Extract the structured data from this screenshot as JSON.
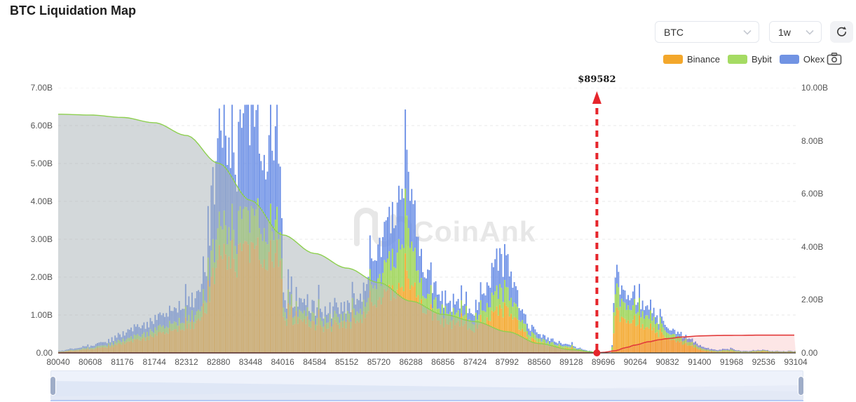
{
  "page": {
    "title": "BTC Liquidation Map"
  },
  "toolbar": {
    "symbol_select": {
      "value": "BTC"
    },
    "interval_select": {
      "value": "1w"
    },
    "icons": {
      "refresh": "circular-arrow",
      "camera": "camera-outline",
      "chevron": "chevron-down"
    }
  },
  "legend": [
    {
      "label": "Binance",
      "color": "#F3A72B"
    },
    {
      "label": "Bybit",
      "color": "#A5DB63"
    },
    {
      "label": "Okex",
      "color": "#7193E3"
    }
  ],
  "watermark": {
    "text": "CoinAnk",
    "color": "#e6e6e6"
  },
  "chart_data": {
    "type": "bar",
    "title": "BTC Liquidation Map",
    "current_price": 89582,
    "current_price_label": "$89582",
    "x_axis": {
      "min": 80040,
      "max": 93104,
      "tick_step": 568,
      "tick_labels": [
        "80040",
        "80608",
        "81176",
        "81744",
        "82312",
        "82880",
        "83448",
        "84016",
        "84584",
        "85152",
        "85720",
        "86288",
        "86856",
        "87424",
        "87992",
        "88560",
        "89128",
        "89696",
        "90264",
        "90832",
        "91400",
        "91968",
        "92536",
        "93104"
      ]
    },
    "y_axis_left": {
      "min": 0,
      "max": 7000000000,
      "tick_labels": [
        "0.00",
        "1.00B",
        "2.00B",
        "3.00B",
        "4.00B",
        "5.00B",
        "6.00B",
        "7.00B"
      ]
    },
    "y_axis_right": {
      "min": 0,
      "max": 10000000000,
      "tick_labels": [
        "0.00",
        "2.00B",
        "4.00B",
        "6.00B",
        "8.00B",
        "10.00B"
      ]
    },
    "grid": {
      "horizontal_dashed": true,
      "color": "#e9e9e9"
    },
    "bar_series_note": "stacked liquidation bars in $B (left axis); anchors = [price, total_B, binance_frac, bybit_frac], Okex = remainder; rendered with seeded jitter to match spiky texture",
    "noise_seed": 20240311,
    "bars": {
      "price_step": 28.4,
      "anchors": [
        [
          80040,
          0.05,
          0.55,
          0.15
        ],
        [
          80320,
          0.1,
          0.55,
          0.15
        ],
        [
          80608,
          0.17,
          0.52,
          0.16
        ],
        [
          80900,
          0.3,
          0.52,
          0.16
        ],
        [
          81176,
          0.48,
          0.5,
          0.16
        ],
        [
          81460,
          0.68,
          0.5,
          0.16
        ],
        [
          81744,
          0.85,
          0.52,
          0.16
        ],
        [
          82030,
          1.0,
          0.52,
          0.16
        ],
        [
          82312,
          1.25,
          0.52,
          0.16
        ],
        [
          82520,
          1.5,
          0.54,
          0.15
        ],
        [
          82660,
          2.3,
          0.5,
          0.15
        ],
        [
          82790,
          4.3,
          0.46,
          0.15
        ],
        [
          82880,
          5.6,
          0.44,
          0.14
        ],
        [
          83020,
          5.9,
          0.45,
          0.14
        ],
        [
          83160,
          4.9,
          0.47,
          0.15
        ],
        [
          83310,
          5.8,
          0.45,
          0.14
        ],
        [
          83448,
          6.3,
          0.44,
          0.14
        ],
        [
          83590,
          5.6,
          0.46,
          0.15
        ],
        [
          83730,
          5.3,
          0.47,
          0.15
        ],
        [
          83870,
          6.0,
          0.45,
          0.14
        ],
        [
          83955,
          5.8,
          0.45,
          0.14
        ],
        [
          83990,
          3.2,
          0.55,
          0.15
        ],
        [
          84030,
          1.4,
          0.6,
          0.16
        ],
        [
          84300,
          1.25,
          0.62,
          0.16
        ],
        [
          84584,
          1.15,
          0.62,
          0.16
        ],
        [
          84860,
          1.05,
          0.62,
          0.16
        ],
        [
          85152,
          1.25,
          0.62,
          0.16
        ],
        [
          85430,
          1.6,
          0.58,
          0.17
        ],
        [
          85720,
          2.55,
          0.5,
          0.2
        ],
        [
          85940,
          3.4,
          0.45,
          0.24
        ],
        [
          86080,
          4.3,
          0.42,
          0.26
        ],
        [
          86180,
          4.85,
          0.4,
          0.27
        ],
        [
          86288,
          4.3,
          0.42,
          0.26
        ],
        [
          86420,
          2.3,
          0.5,
          0.22
        ],
        [
          86570,
          2.0,
          0.52,
          0.2
        ],
        [
          86710,
          1.6,
          0.55,
          0.2
        ],
        [
          86856,
          1.4,
          0.56,
          0.2
        ],
        [
          87000,
          1.1,
          0.58,
          0.2
        ],
        [
          87140,
          1.25,
          0.58,
          0.2
        ],
        [
          87280,
          1.2,
          0.58,
          0.2
        ],
        [
          87424,
          1.15,
          0.56,
          0.2
        ],
        [
          87560,
          1.5,
          0.52,
          0.2
        ],
        [
          87700,
          2.1,
          0.48,
          0.2
        ],
        [
          87850,
          2.55,
          0.45,
          0.2
        ],
        [
          87992,
          2.3,
          0.47,
          0.2
        ],
        [
          88130,
          1.5,
          0.52,
          0.2
        ],
        [
          88280,
          1.0,
          0.55,
          0.2
        ],
        [
          88420,
          0.65,
          0.55,
          0.2
        ],
        [
          88560,
          0.5,
          0.55,
          0.2
        ],
        [
          88700,
          0.38,
          0.55,
          0.2
        ],
        [
          88850,
          0.3,
          0.55,
          0.2
        ],
        [
          89000,
          0.22,
          0.55,
          0.2
        ],
        [
          89128,
          0.18,
          0.55,
          0.2
        ],
        [
          89270,
          0.12,
          0.55,
          0.2
        ],
        [
          89410,
          0.06,
          0.55,
          0.2
        ],
        [
          89540,
          0.02,
          0.55,
          0.2
        ],
        [
          89580,
          0.0,
          0.5,
          0.2
        ],
        [
          89845,
          0.0,
          0.5,
          0.2
        ],
        [
          89862,
          0.5,
          0.1,
          0.75
        ],
        [
          89890,
          1.7,
          0.5,
          0.28
        ],
        [
          89950,
          1.85,
          0.52,
          0.27
        ],
        [
          90050,
          1.6,
          0.54,
          0.26
        ],
        [
          90150,
          1.45,
          0.55,
          0.25
        ],
        [
          90264,
          1.35,
          0.55,
          0.25
        ],
        [
          90400,
          1.2,
          0.56,
          0.24
        ],
        [
          90550,
          1.05,
          0.56,
          0.24
        ],
        [
          90700,
          0.9,
          0.56,
          0.24
        ],
        [
          90832,
          0.72,
          0.56,
          0.24
        ],
        [
          90970,
          0.55,
          0.56,
          0.24
        ],
        [
          91110,
          0.45,
          0.55,
          0.24
        ],
        [
          91250,
          0.35,
          0.52,
          0.24
        ],
        [
          91400,
          0.22,
          0.45,
          0.25
        ],
        [
          91550,
          0.12,
          0.35,
          0.3
        ],
        [
          91700,
          0.08,
          0.3,
          0.35
        ],
        [
          91968,
          0.09,
          0.3,
          0.4
        ],
        [
          92100,
          0.06,
          0.3,
          0.4
        ],
        [
          92250,
          0.05,
          0.3,
          0.4
        ],
        [
          92400,
          0.07,
          0.35,
          0.4
        ],
        [
          92536,
          0.08,
          0.4,
          0.4
        ],
        [
          92700,
          0.05,
          0.4,
          0.35
        ],
        [
          92850,
          0.04,
          0.4,
          0.35
        ],
        [
          93000,
          0.05,
          0.4,
          0.35
        ],
        [
          93104,
          0.04,
          0.4,
          0.35
        ]
      ]
    },
    "series": [
      {
        "name": "Binance",
        "type": "bar",
        "color": "#F3A72B"
      },
      {
        "name": "Bybit",
        "type": "bar",
        "color": "#9CD455"
      },
      {
        "name": "Okex",
        "type": "bar",
        "color": "#6E91E6"
      },
      {
        "name": "cumulative-short-area",
        "type": "area",
        "axis": "right",
        "fill": "rgba(168,177,182,0.5)",
        "edge_color": "#8ed050",
        "points": [
          [
            80040,
            9.0
          ],
          [
            80608,
            8.97
          ],
          [
            81176,
            8.88
          ],
          [
            81744,
            8.68
          ],
          [
            82312,
            8.2
          ],
          [
            82880,
            7.15
          ],
          [
            83448,
            5.75
          ],
          [
            84016,
            4.45
          ],
          [
            84584,
            3.75
          ],
          [
            85152,
            3.2
          ],
          [
            85720,
            2.65
          ],
          [
            86288,
            1.95
          ],
          [
            86856,
            1.45
          ],
          [
            87424,
            1.18
          ],
          [
            87992,
            0.8
          ],
          [
            88560,
            0.35
          ],
          [
            89128,
            0.12
          ],
          [
            89582,
            0.02
          ]
        ]
      },
      {
        "name": "cumulative-long-line",
        "type": "area",
        "axis": "right",
        "fill": "rgba(242,85,85,0.15)",
        "edge_color": "#e23b3b",
        "points": [
          [
            80040,
            0
          ],
          [
            89582,
            0
          ],
          [
            89700,
            0.02
          ],
          [
            89900,
            0.08
          ],
          [
            90100,
            0.2
          ],
          [
            90264,
            0.3
          ],
          [
            90500,
            0.42
          ],
          [
            90700,
            0.5
          ],
          [
            90832,
            0.54
          ],
          [
            91100,
            0.6
          ],
          [
            91400,
            0.64
          ],
          [
            91700,
            0.655
          ],
          [
            91968,
            0.66
          ],
          [
            92536,
            0.67
          ],
          [
            93104,
            0.67
          ]
        ]
      }
    ],
    "marker": {
      "price": 89582,
      "line_color": "#e6252b",
      "style": "dashed-vertical-with-arrow-and-dot"
    }
  },
  "slider": {
    "type": "range",
    "handles": 2
  }
}
